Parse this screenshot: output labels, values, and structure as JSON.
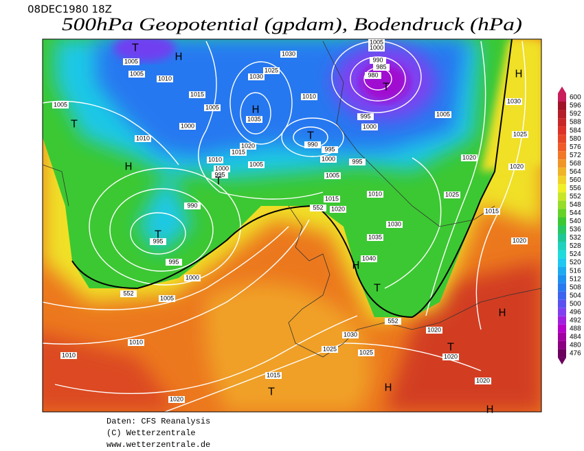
{
  "header": {
    "date": "08DEC1980 18Z",
    "title": "500hPa Geopotential (gpdam), Bodendruck (hPa)"
  },
  "map": {
    "labels": [
      "T",
      "H",
      "1005",
      "1005",
      "1010",
      "1030",
      "1025",
      "1030",
      "1005",
      "1000",
      "990",
      "985",
      "980",
      "T",
      "H",
      "1015",
      "1010",
      "1005",
      "1005",
      "H",
      "1035",
      "995",
      "1005",
      "1030",
      "T",
      "1000",
      "1000",
      "1025",
      "1010",
      "T",
      "990",
      "1020",
      "1015",
      "995",
      "1000",
      "1010",
      "995",
      "1000",
      "1005",
      "H",
      "995",
      "1020",
      "1020",
      "T",
      "1005",
      "1010",
      "1025",
      "1015",
      "552",
      "1020",
      "990",
      "1015",
      "1030",
      "T",
      "995",
      "1035",
      "1020",
      "1040",
      "H",
      "995",
      "1000",
      "T",
      "552",
      "1005",
      "H",
      "552",
      "1020",
      "1030",
      "1010",
      "T",
      "1025",
      "1025",
      "1020",
      "1010",
      "1015",
      "1020",
      "T",
      "H",
      "1020",
      "H"
    ]
  },
  "colorbar": {
    "levels": [
      600,
      596,
      592,
      588,
      584,
      580,
      576,
      572,
      568,
      564,
      560,
      556,
      552,
      548,
      544,
      540,
      536,
      532,
      528,
      524,
      520,
      516,
      512,
      508,
      504,
      500,
      496,
      492,
      488,
      484,
      480,
      476
    ],
    "colors": [
      "#c81e5a",
      "#a01428",
      "#b41e28",
      "#c82828",
      "#dc3228",
      "#e64628",
      "#f05a28",
      "#f07828",
      "#f09628",
      "#f0b428",
      "#f0d228",
      "#f0f028",
      "#c8e628",
      "#96dc28",
      "#64d228",
      "#3cc832",
      "#28c864",
      "#1ec896",
      "#1ed2be",
      "#1edcdc",
      "#1ec8f0",
      "#1eaaf0",
      "#1e90f0",
      "#2878f0",
      "#3c64f0",
      "#5a50f0",
      "#8040f0",
      "#a020e0",
      "#b400c8",
      "#a000a0",
      "#8a0080",
      "#6b005e"
    ]
  },
  "footer": {
    "lines": [
      "Daten: CFS Reanalysis",
      "(C) Wetterzentrale",
      "www.wetterzentrale.de"
    ]
  }
}
